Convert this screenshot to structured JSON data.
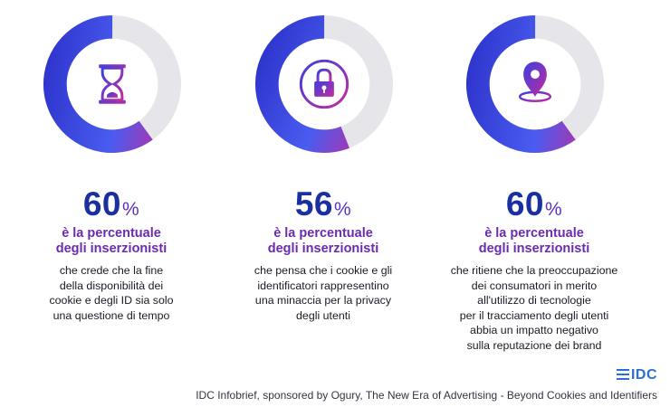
{
  "chart_data": [
    {
      "type": "donut",
      "value": 60,
      "value_unit": "%",
      "icon": "hourglass-icon",
      "headline": [
        "è la percentuale",
        "degli inserzionisti"
      ],
      "description": [
        "che crede che la fine",
        "della disponibilità dei",
        "cookie e degli ID sia solo",
        "una questione di tempo"
      ]
    },
    {
      "type": "donut",
      "value": 56,
      "value_unit": "%",
      "icon": "padlock-icon",
      "headline": [
        "è la percentuale",
        "degli inserzionisti"
      ],
      "description": [
        "che pensa che i cookie e gli",
        "identificatori rappresentino",
        "una minaccia per la privacy",
        "degli utenti"
      ]
    },
    {
      "type": "donut",
      "value": 60,
      "value_unit": "%",
      "icon": "location-pin-icon",
      "headline": [
        "è la percentuale",
        "degli inserzionisti"
      ],
      "description": [
        "che ritiene che la preoccupazione",
        "dei consumatori in merito",
        "all'utilizzo di tecnologie",
        "per il tracciamento degli utenti",
        "abbia un impatto negativo",
        "sulla reputazione dei brand"
      ]
    }
  ],
  "footer": {
    "logo": "IDC",
    "source": "IDC Infobrief, sponsored by Ogury, The New Era of Advertising - Beyond Cookies and Identifiers"
  },
  "colors": {
    "gradient_start": "#1a2fa0",
    "gradient_mid": "#3a4fe0",
    "gradient_end": "#e0208a",
    "track": "#e6e6ea",
    "headline": "#6a2bb0",
    "logo": "#2a6fd6"
  }
}
